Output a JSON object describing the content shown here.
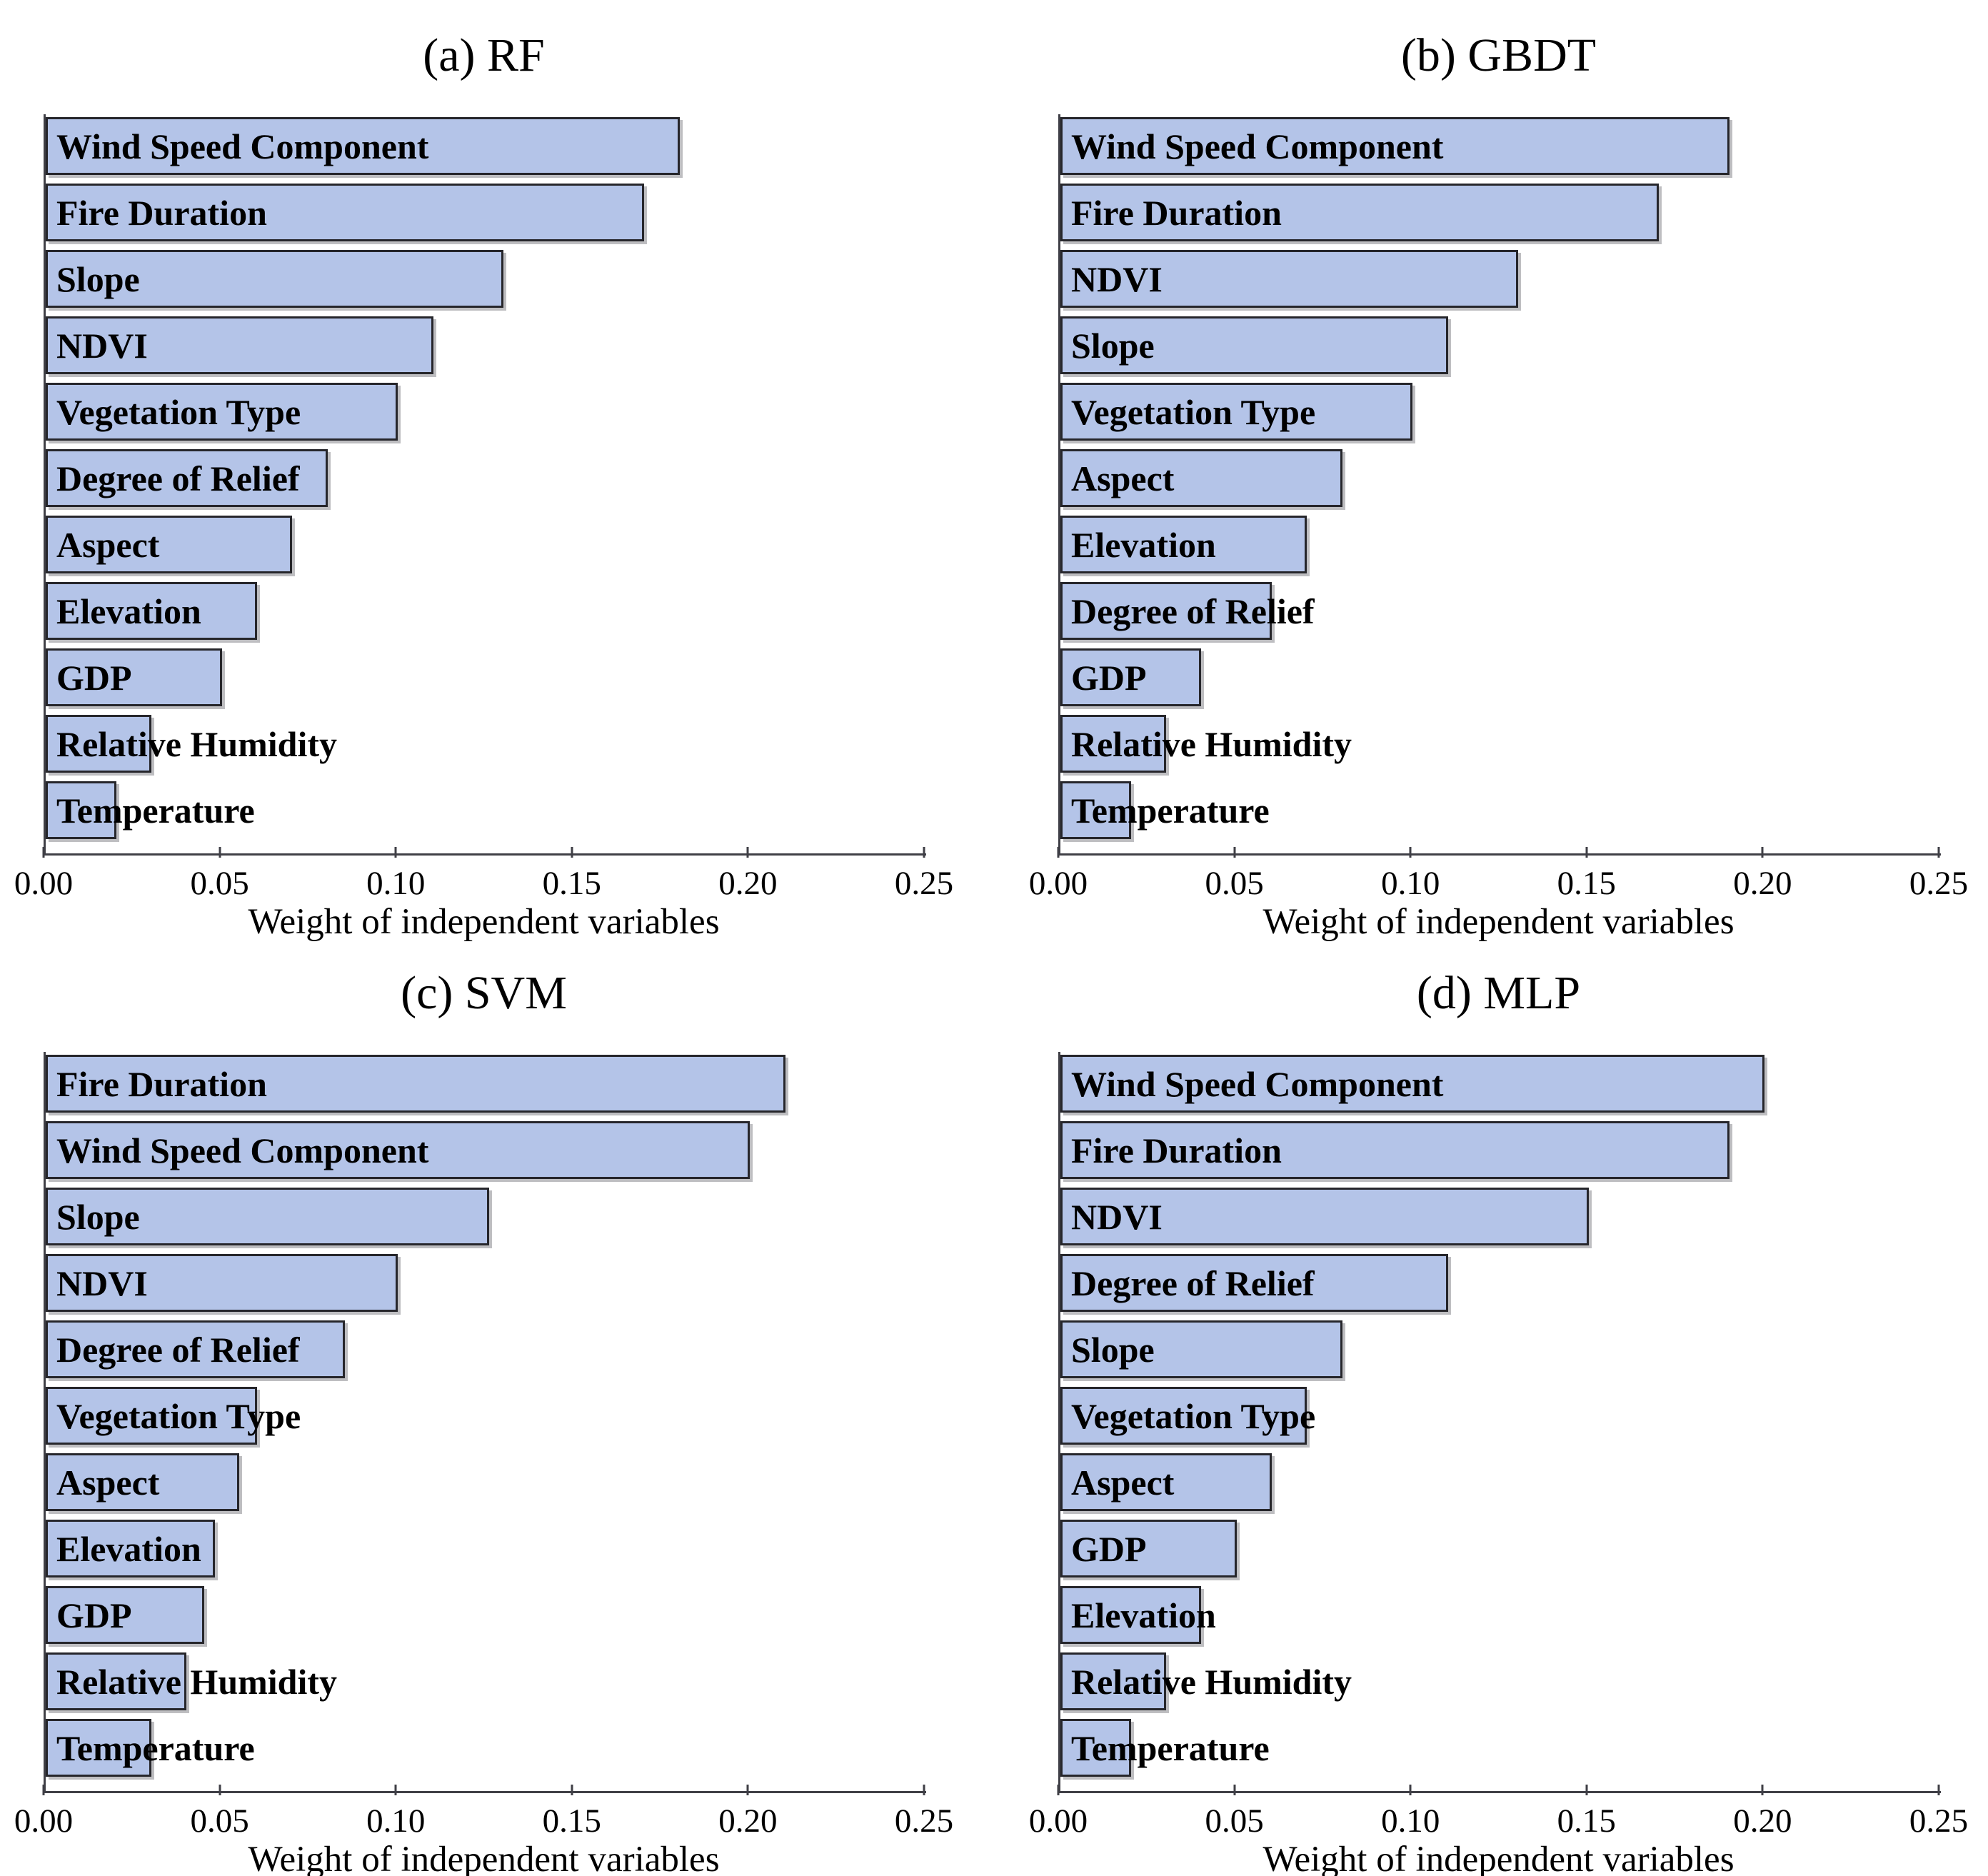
{
  "figure": {
    "colors": {
      "bar_fill": "#b4c4e8",
      "bar_border": "#26262b",
      "axis": "#3f3f46",
      "text": "#000000",
      "background": "#ffffff"
    }
  },
  "chart_data": [
    {
      "id": "a",
      "type": "bar",
      "orientation": "horizontal",
      "title": "(a) RF",
      "xlabel": "Weight of independent variables",
      "xlim": [
        0,
        0.25
      ],
      "xticks": [
        "0.00",
        "0.05",
        "0.10",
        "0.15",
        "0.20",
        "0.25"
      ],
      "grid": false,
      "legend": false,
      "categories": [
        "Wind Speed Component",
        "Fire Duration",
        "Slope",
        "NDVI",
        "Vegetation Type",
        "Degree of Relief",
        "Aspect",
        "Elevation",
        "GDP",
        "Relative Humidity",
        "Temperature"
      ],
      "values": [
        0.18,
        0.17,
        0.13,
        0.11,
        0.1,
        0.08,
        0.07,
        0.06,
        0.05,
        0.03,
        0.02
      ]
    },
    {
      "id": "b",
      "type": "bar",
      "orientation": "horizontal",
      "title": "(b) GBDT",
      "xlabel": "Weight of independent variables",
      "xlim": [
        0,
        0.25
      ],
      "xticks": [
        "0.00",
        "0.05",
        "0.10",
        "0.15",
        "0.20",
        "0.25"
      ],
      "grid": false,
      "legend": false,
      "categories": [
        "Wind Speed Component",
        "Fire Duration",
        "NDVI",
        "Slope",
        "Vegetation Type",
        "Aspect",
        "Elevation",
        "Degree of Relief",
        "GDP",
        "Relative Humidity",
        "Temperature"
      ],
      "values": [
        0.19,
        0.17,
        0.13,
        0.11,
        0.1,
        0.08,
        0.07,
        0.06,
        0.04,
        0.03,
        0.02
      ]
    },
    {
      "id": "c",
      "type": "bar",
      "orientation": "horizontal",
      "title": "(c) SVM",
      "xlabel": "Weight of independent variables",
      "xlim": [
        0,
        0.25
      ],
      "xticks": [
        "0.00",
        "0.05",
        "0.10",
        "0.15",
        "0.20",
        "0.25"
      ],
      "grid": false,
      "legend": false,
      "categories": [
        "Fire Duration",
        "Wind Speed Component",
        "Slope",
        "NDVI",
        "Degree of Relief",
        "Vegetation Type",
        "Aspect",
        "Elevation",
        "GDP",
        "Relative Humidity",
        "Temperature"
      ],
      "values": [
        0.21,
        0.2,
        0.126,
        0.1,
        0.085,
        0.06,
        0.055,
        0.048,
        0.045,
        0.04,
        0.03
      ]
    },
    {
      "id": "d",
      "type": "bar",
      "orientation": "horizontal",
      "title": "(d) MLP",
      "xlabel": "Weight of independent variables",
      "xlim": [
        0,
        0.25
      ],
      "xticks": [
        "0.00",
        "0.05",
        "0.10",
        "0.15",
        "0.20",
        "0.25"
      ],
      "grid": false,
      "legend": false,
      "categories": [
        "Wind Speed Component",
        "Fire Duration",
        "NDVI",
        "Degree of Relief",
        "Slope",
        "Vegetation Type",
        "Aspect",
        "GDP",
        "Elevation",
        "Relative Humidity",
        "Temperature"
      ],
      "values": [
        0.2,
        0.19,
        0.15,
        0.11,
        0.08,
        0.07,
        0.06,
        0.05,
        0.04,
        0.03,
        0.02
      ]
    }
  ]
}
